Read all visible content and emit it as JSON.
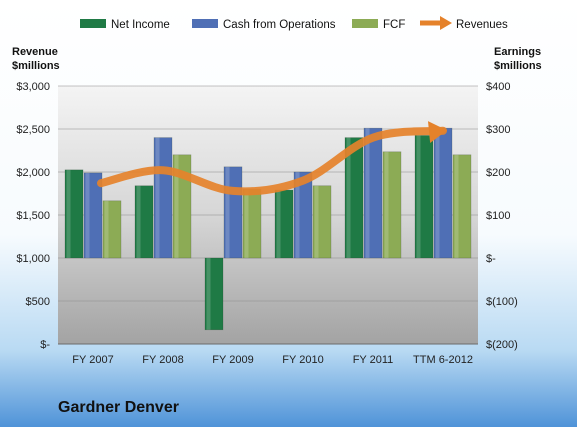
{
  "chart_data": {
    "type": "bar",
    "title": "",
    "company": "Gardner Denver",
    "categories": [
      "FY 2007",
      "FY 2008",
      "FY 2009",
      "FY 2010",
      "FY 2011",
      "TTM 6-2012"
    ],
    "left_axis": {
      "label_line1": "Revenue",
      "label_line2": "$millions",
      "ylim": [
        0,
        3000
      ],
      "ticks": [
        0,
        500,
        1000,
        1500,
        2000,
        2500,
        3000
      ],
      "tick_labels": [
        "$-",
        "$500",
        "$1,000",
        "$1,500",
        "$2,000",
        "$2,500",
        "$3,000"
      ]
    },
    "right_axis": {
      "label_line1": "Earnings",
      "label_line2": "$millions",
      "ylim": [
        -200,
        400
      ],
      "ticks": [
        -200,
        -100,
        0,
        100,
        200,
        300,
        400
      ],
      "tick_labels": [
        "$(200)",
        "$(100)",
        "$-",
        "$100",
        "$200",
        "$300",
        "$400"
      ]
    },
    "series": [
      {
        "name": "Net Income",
        "axis": "right",
        "values": [
          205,
          168,
          -167,
          158,
          280,
          285
        ],
        "color": "#1f7a45"
      },
      {
        "name": "Cash from Operations",
        "axis": "right",
        "values": [
          198,
          280,
          212,
          200,
          302,
          302
        ],
        "color": "#4f6fb5"
      },
      {
        "name": "FCF",
        "axis": "right",
        "values": [
          133,
          240,
          160,
          168,
          247,
          240
        ],
        "color": "#8cab55"
      },
      {
        "name": "Revenues",
        "axis": "left",
        "type": "line",
        "values": [
          1870,
          2020,
          1780,
          1900,
          2400,
          2480
        ],
        "color": "#e5822b"
      }
    ],
    "grid": true,
    "legend_position": "top"
  }
}
